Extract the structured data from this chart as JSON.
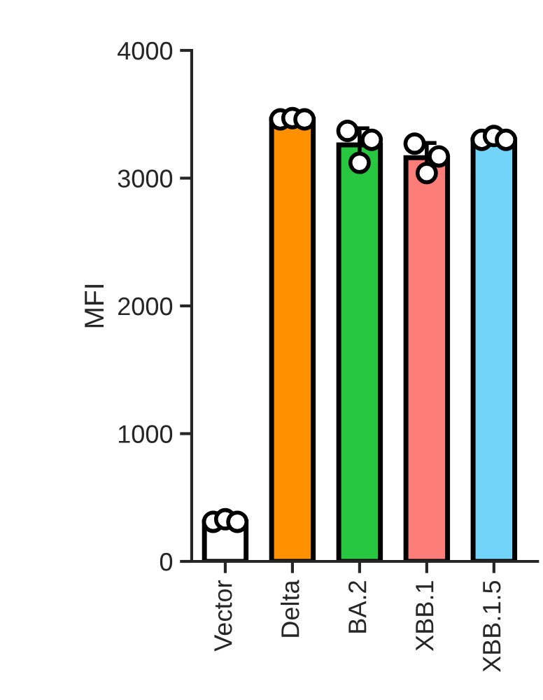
{
  "chart_data": {
    "type": "bar",
    "ylabel": "MFI",
    "categories": [
      "Vector",
      "Delta",
      "BA.2",
      "XBB.1",
      "XBB.1.5"
    ],
    "ylim": [
      0,
      4000
    ],
    "yticks": [
      0,
      1000,
      2000,
      3000,
      4000
    ],
    "grid": false,
    "legend": false,
    "series": [
      {
        "colors": [
          "#ffffff",
          "#ff9000",
          "#27c840",
          "#fc7c78",
          "#72d4f8"
        ],
        "values": [
          310,
          3460,
          3260,
          3160,
          3300
        ],
        "errors": [
          20,
          10,
          130,
          115,
          20
        ]
      },
      {
        "type": "scatter",
        "color": "#ffffff",
        "marker": "circle",
        "x": [
          "Vector",
          "Vector",
          "Vector",
          "Delta",
          "Delta",
          "Delta",
          "BA.2",
          "BA.2",
          "BA.2",
          "XBB.1",
          "XBB.1",
          "XBB.1",
          "XBB.1.5",
          "XBB.1.5",
          "XBB.1.5"
        ],
        "values": [
          310,
          330,
          310,
          3460,
          3470,
          3460,
          3370,
          3120,
          3300,
          3270,
          3040,
          3170,
          3300,
          3330,
          3300
        ]
      }
    ]
  }
}
